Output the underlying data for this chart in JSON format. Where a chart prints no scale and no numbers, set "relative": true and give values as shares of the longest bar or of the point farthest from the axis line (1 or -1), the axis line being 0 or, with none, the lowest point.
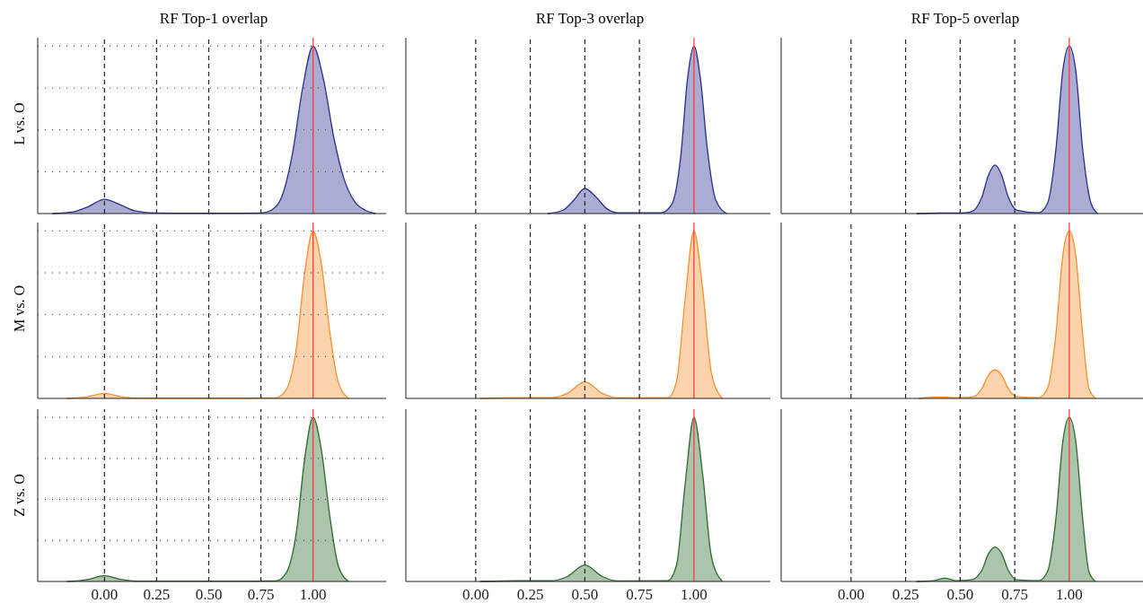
{
  "chart_data": [
    {
      "type": "area",
      "title": "RF Top-1 overlap",
      "ylabel": "L vs. O",
      "relative": true,
      "grid": "y",
      "tick_labels": false,
      "xlim": [
        -0.32,
        1.35
      ],
      "xticks": [
        {
          "value": 0,
          "label": null
        },
        {
          "value": 0.25,
          "label": null
        },
        {
          "value": 0.5,
          "label": null
        },
        {
          "value": 0.75,
          "label": null
        },
        {
          "value": 1,
          "label": null
        }
      ],
      "ref_lines": [
        {
          "axis": "x",
          "value": 0,
          "color": "#222222",
          "line_style": "dashed"
        },
        {
          "axis": "x",
          "value": 0.25,
          "color": "#222222",
          "line_style": "dashed"
        },
        {
          "axis": "x",
          "value": 0.5,
          "color": "#222222",
          "line_style": "dashed"
        },
        {
          "axis": "x",
          "value": 0.75,
          "color": "#222222",
          "line_style": "dashed"
        },
        {
          "axis": "x",
          "value": 1,
          "color": "#ff3030",
          "line_style": "solid"
        }
      ],
      "series": [
        {
          "color": "#2b2f8c",
          "x": [
            -0.25,
            -0.15,
            -0.08,
            0,
            0.08,
            0.15,
            0.25,
            0.5,
            0.75,
            0.8,
            0.85,
            0.9,
            0.95,
            1,
            1.05,
            1.1,
            1.15,
            1.2,
            1.25,
            1.3
          ],
          "values": [
            0,
            0.01,
            0.04,
            0.085,
            0.05,
            0.015,
            0.003,
            0.002,
            0.003,
            0.02,
            0.1,
            0.35,
            0.75,
            1,
            0.8,
            0.45,
            0.2,
            0.07,
            0.02,
            0
          ]
        }
      ]
    },
    {
      "type": "area",
      "title": "RF Top-3 overlap",
      "relative": true,
      "tick_labels": false,
      "xlim": [
        -0.32,
        1.35
      ],
      "xticks": [
        {
          "value": 0,
          "label": null
        },
        {
          "value": 0.25,
          "label": null
        },
        {
          "value": 0.5,
          "label": null
        },
        {
          "value": 0.75,
          "label": null
        },
        {
          "value": 1,
          "label": null
        }
      ],
      "ref_lines": [
        {
          "axis": "x",
          "value": 0,
          "color": "#222222",
          "line_style": "dashed"
        },
        {
          "axis": "x",
          "value": 0.25,
          "color": "#222222",
          "line_style": "dashed"
        },
        {
          "axis": "x",
          "value": 0.5,
          "color": "#222222",
          "line_style": "dashed"
        },
        {
          "axis": "x",
          "value": 0.75,
          "color": "#222222",
          "line_style": "dashed"
        },
        {
          "axis": "x",
          "value": 1,
          "color": "#ff3030",
          "line_style": "solid"
        }
      ],
      "series": [
        {
          "color": "#2b2f8c",
          "x": [
            0.33,
            0.4,
            0.45,
            0.5,
            0.55,
            0.6,
            0.65,
            0.85,
            0.9,
            0.94,
            0.97,
            1,
            1.03,
            1.06,
            1.1,
            1.15
          ],
          "values": [
            0,
            0.02,
            0.08,
            0.15,
            0.1,
            0.03,
            0.005,
            0.005,
            0.06,
            0.35,
            0.8,
            1,
            0.8,
            0.4,
            0.08,
            0
          ]
        }
      ]
    },
    {
      "type": "area",
      "title": "RF Top-5 overlap",
      "relative": true,
      "tick_labels": false,
      "xlim": [
        -0.32,
        1.35
      ],
      "xticks": [
        {
          "value": 0,
          "label": null
        },
        {
          "value": 0.25,
          "label": null
        },
        {
          "value": 0.5,
          "label": null
        },
        {
          "value": 0.75,
          "label": null
        },
        {
          "value": 1,
          "label": null
        }
      ],
      "ref_lines": [
        {
          "axis": "x",
          "value": 0,
          "color": "#222222",
          "line_style": "dashed"
        },
        {
          "axis": "x",
          "value": 0.25,
          "color": "#222222",
          "line_style": "dashed"
        },
        {
          "axis": "x",
          "value": 0.5,
          "color": "#222222",
          "line_style": "dashed"
        },
        {
          "axis": "x",
          "value": 0.75,
          "color": "#222222",
          "line_style": "dashed"
        },
        {
          "axis": "x",
          "value": 1,
          "color": "#ff3030",
          "line_style": "solid"
        }
      ],
      "series": [
        {
          "color": "#2b2f8c",
          "x": [
            0.3,
            0.4,
            0.5,
            0.55,
            0.6,
            0.63,
            0.66,
            0.69,
            0.72,
            0.76,
            0.86,
            0.9,
            0.94,
            0.97,
            1,
            1.03,
            1.06,
            1.1,
            1.13
          ],
          "values": [
            0,
            0.003,
            0.003,
            0.01,
            0.1,
            0.23,
            0.29,
            0.23,
            0.1,
            0.02,
            0.005,
            0.06,
            0.4,
            0.85,
            1,
            0.85,
            0.4,
            0.06,
            0
          ]
        }
      ]
    },
    {
      "type": "area",
      "ylabel": "M vs. O",
      "relative": true,
      "grid": "y",
      "tick_labels": false,
      "xlim": [
        -0.32,
        1.35
      ],
      "xticks": [
        {
          "value": 0,
          "label": null
        },
        {
          "value": 0.25,
          "label": null
        },
        {
          "value": 0.5,
          "label": null
        },
        {
          "value": 0.75,
          "label": null
        },
        {
          "value": 1,
          "label": null
        }
      ],
      "ref_lines": [
        {
          "axis": "x",
          "value": 0,
          "color": "#222222",
          "line_style": "dashed"
        },
        {
          "axis": "x",
          "value": 0.25,
          "color": "#222222",
          "line_style": "dashed"
        },
        {
          "axis": "x",
          "value": 0.5,
          "color": "#222222",
          "line_style": "dashed"
        },
        {
          "axis": "x",
          "value": 0.75,
          "color": "#222222",
          "line_style": "dashed"
        },
        {
          "axis": "x",
          "value": 1,
          "color": "#ff3030",
          "line_style": "solid"
        }
      ],
      "series": [
        {
          "color": "#f5922f",
          "x": [
            -0.18,
            -0.08,
            0,
            0.08,
            0.15,
            0.5,
            0.82,
            0.87,
            0.92,
            0.96,
            1,
            1.04,
            1.08,
            1.12,
            1.17
          ],
          "values": [
            0,
            0.01,
            0.03,
            0.01,
            0.002,
            0.002,
            0.003,
            0.05,
            0.3,
            0.75,
            1,
            0.8,
            0.4,
            0.1,
            0
          ]
        }
      ]
    },
    {
      "type": "area",
      "relative": true,
      "tick_labels": false,
      "xlim": [
        -0.32,
        1.35
      ],
      "xticks": [
        {
          "value": 0,
          "label": null
        },
        {
          "value": 0.25,
          "label": null
        },
        {
          "value": 0.5,
          "label": null
        },
        {
          "value": 0.75,
          "label": null
        },
        {
          "value": 1,
          "label": null
        }
      ],
      "ref_lines": [
        {
          "axis": "x",
          "value": 0,
          "color": "#222222",
          "line_style": "dashed"
        },
        {
          "axis": "x",
          "value": 0.25,
          "color": "#222222",
          "line_style": "dashed"
        },
        {
          "axis": "x",
          "value": 0.5,
          "color": "#222222",
          "line_style": "dashed"
        },
        {
          "axis": "x",
          "value": 0.75,
          "color": "#222222",
          "line_style": "dashed"
        },
        {
          "axis": "x",
          "value": 1,
          "color": "#ff3030",
          "line_style": "solid"
        }
      ],
      "series": [
        {
          "color": "#f5922f",
          "x": [
            0.02,
            0.2,
            0.35,
            0.42,
            0.5,
            0.58,
            0.65,
            0.88,
            0.92,
            0.96,
            1,
            1.04,
            1.08,
            1.13
          ],
          "values": [
            0,
            0.005,
            0.005,
            0.03,
            0.1,
            0.03,
            0.003,
            0.005,
            0.1,
            0.6,
            1,
            0.65,
            0.15,
            0
          ]
        }
      ]
    },
    {
      "type": "area",
      "relative": true,
      "tick_labels": false,
      "xlim": [
        -0.32,
        1.35
      ],
      "xticks": [
        {
          "value": 0,
          "label": null
        },
        {
          "value": 0.25,
          "label": null
        },
        {
          "value": 0.5,
          "label": null
        },
        {
          "value": 0.75,
          "label": null
        },
        {
          "value": 1,
          "label": null
        }
      ],
      "ref_lines": [
        {
          "axis": "x",
          "value": 0,
          "color": "#222222",
          "line_style": "dashed"
        },
        {
          "axis": "x",
          "value": 0.25,
          "color": "#222222",
          "line_style": "dashed"
        },
        {
          "axis": "x",
          "value": 0.5,
          "color": "#222222",
          "line_style": "dashed"
        },
        {
          "axis": "x",
          "value": 0.75,
          "color": "#222222",
          "line_style": "dashed"
        },
        {
          "axis": "x",
          "value": 1,
          "color": "#ff3030",
          "line_style": "solid"
        }
      ],
      "series": [
        {
          "color": "#f5922f",
          "x": [
            0.31,
            0.4,
            0.5,
            0.56,
            0.6,
            0.63,
            0.66,
            0.69,
            0.72,
            0.76,
            0.86,
            0.9,
            0.94,
            0.97,
            1,
            1.03,
            1.06,
            1.09,
            1.12
          ],
          "values": [
            0,
            0.008,
            0.004,
            0.01,
            0.06,
            0.14,
            0.17,
            0.14,
            0.06,
            0.01,
            0.005,
            0.06,
            0.4,
            0.85,
            1,
            0.85,
            0.4,
            0.06,
            0
          ]
        }
      ]
    },
    {
      "type": "area",
      "ylabel": "Z vs. O",
      "relative": true,
      "grid": "y",
      "tick_labels": "x",
      "xlim": [
        -0.32,
        1.35
      ],
      "xticks": [
        {
          "value": 0,
          "label": "0.00"
        },
        {
          "value": 0.25,
          "label": "0.25"
        },
        {
          "value": 0.5,
          "label": "0.50"
        },
        {
          "value": 0.75,
          "label": "0.75"
        },
        {
          "value": 1,
          "label": "1.00"
        }
      ],
      "ref_lines": [
        {
          "axis": "x",
          "value": 0,
          "color": "#222222",
          "line_style": "dashed"
        },
        {
          "axis": "x",
          "value": 0.25,
          "color": "#222222",
          "line_style": "dashed"
        },
        {
          "axis": "x",
          "value": 0.5,
          "color": "#222222",
          "line_style": "dashed"
        },
        {
          "axis": "x",
          "value": 0.75,
          "color": "#222222",
          "line_style": "dashed"
        },
        {
          "axis": "x",
          "value": 1,
          "color": "#ff3030",
          "line_style": "solid"
        }
      ],
      "series": [
        {
          "color": "#2e6b2e",
          "x": [
            -0.18,
            -0.08,
            0,
            0.08,
            0.15,
            0.5,
            0.82,
            0.87,
            0.92,
            0.96,
            1,
            1.04,
            1.08,
            1.12,
            1.17
          ],
          "values": [
            0,
            0.012,
            0.035,
            0.012,
            0.002,
            0.002,
            0.003,
            0.05,
            0.3,
            0.75,
            1,
            0.8,
            0.4,
            0.1,
            0
          ]
        }
      ]
    },
    {
      "type": "area",
      "relative": true,
      "tick_labels": "x",
      "xlim": [
        -0.32,
        1.35
      ],
      "xticks": [
        {
          "value": 0,
          "label": "0.00"
        },
        {
          "value": 0.25,
          "label": "0.25"
        },
        {
          "value": 0.5,
          "label": "0.50"
        },
        {
          "value": 0.75,
          "label": "0.75"
        },
        {
          "value": 1,
          "label": "1.00"
        }
      ],
      "ref_lines": [
        {
          "axis": "x",
          "value": 0,
          "color": "#222222",
          "line_style": "dashed"
        },
        {
          "axis": "x",
          "value": 0.25,
          "color": "#222222",
          "line_style": "dashed"
        },
        {
          "axis": "x",
          "value": 0.5,
          "color": "#222222",
          "line_style": "dashed"
        },
        {
          "axis": "x",
          "value": 0.75,
          "color": "#222222",
          "line_style": "dashed"
        },
        {
          "axis": "x",
          "value": 1,
          "color": "#ff3030",
          "line_style": "solid"
        }
      ],
      "series": [
        {
          "color": "#2e6b2e",
          "x": [
            0.02,
            0.2,
            0.35,
            0.42,
            0.5,
            0.58,
            0.65,
            0.88,
            0.92,
            0.96,
            1,
            1.04,
            1.08,
            1.13
          ],
          "values": [
            0,
            0.004,
            0.004,
            0.03,
            0.1,
            0.03,
            0.003,
            0.005,
            0.1,
            0.6,
            1,
            0.65,
            0.15,
            0
          ]
        }
      ]
    },
    {
      "type": "area",
      "relative": true,
      "tick_labels": "x",
      "xlim": [
        -0.32,
        1.35
      ],
      "xticks": [
        {
          "value": 0,
          "label": "0.00"
        },
        {
          "value": 0.25,
          "label": "0.25"
        },
        {
          "value": 0.5,
          "label": "0.50"
        },
        {
          "value": 0.75,
          "label": "0.75"
        },
        {
          "value": 1,
          "label": "1.00"
        }
      ],
      "ref_lines": [
        {
          "axis": "x",
          "value": 0,
          "color": "#222222",
          "line_style": "dashed"
        },
        {
          "axis": "x",
          "value": 0.25,
          "color": "#222222",
          "line_style": "dashed"
        },
        {
          "axis": "x",
          "value": 0.5,
          "color": "#222222",
          "line_style": "dashed"
        },
        {
          "axis": "x",
          "value": 0.75,
          "color": "#222222",
          "line_style": "dashed"
        },
        {
          "axis": "x",
          "value": 1,
          "color": "#ff3030",
          "line_style": "solid"
        }
      ],
      "series": [
        {
          "color": "#2e6b2e",
          "x": [
            0.3,
            0.38,
            0.43,
            0.48,
            0.55,
            0.6,
            0.63,
            0.66,
            0.69,
            0.72,
            0.76,
            0.86,
            0.9,
            0.94,
            0.97,
            1,
            1.03,
            1.06,
            1.09,
            1.12
          ],
          "values": [
            0,
            0.005,
            0.02,
            0.005,
            0.01,
            0.07,
            0.17,
            0.21,
            0.17,
            0.07,
            0.01,
            0.005,
            0.06,
            0.4,
            0.85,
            1,
            0.85,
            0.4,
            0.06,
            0
          ]
        }
      ]
    }
  ]
}
